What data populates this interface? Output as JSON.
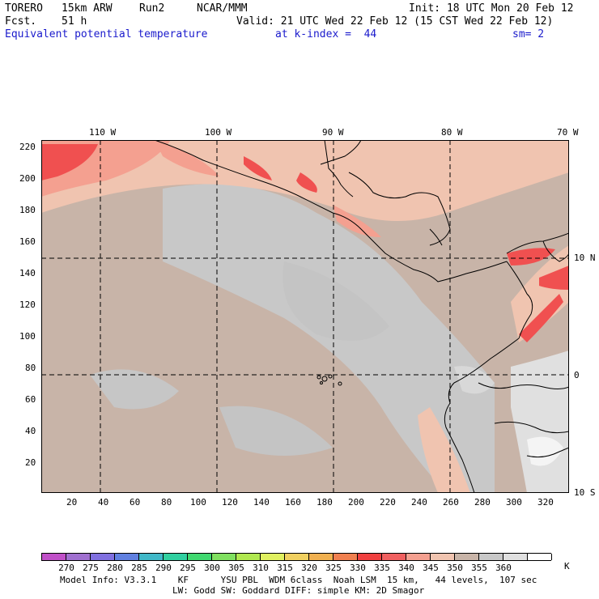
{
  "header": {
    "model": "TORERO",
    "resolution": "15km ARW",
    "run": "Run2",
    "org": "NCAR/MMM",
    "init": "Init: 18 UTC Mon 20 Feb 12",
    "fcst_label": "Fcst.",
    "fcst_value": "51 h",
    "valid": "Valid: 21 UTC Wed 22 Feb 12 (15 CST Wed 22 Feb 12)",
    "field": "Equivalent potential temperature",
    "level": "at k-index =  44",
    "smoothing": "sm= 2"
  },
  "map": {
    "top_lon_labels": [
      "110 W",
      "100 W",
      "90 W",
      "80 W",
      "70 W"
    ],
    "right_lat_labels": [
      "10 N",
      "0",
      "10 S"
    ],
    "left_y_ticks": [
      "220",
      "200",
      "180",
      "160",
      "140",
      "120",
      "100",
      "80",
      "60",
      "40",
      "20"
    ],
    "bottom_x_ticks": [
      "20",
      "40",
      "60",
      "80",
      "100",
      "120",
      "140",
      "160",
      "180",
      "200",
      "220",
      "240",
      "260",
      "280",
      "300",
      "320"
    ],
    "colors": {
      "ocean_base": "#c8b4a8",
      "cool": "#c8c8c8",
      "warm_light": "#f0c4b0",
      "warm_mid": "#f4a090",
      "warm_hot": "#f05050",
      "land_pale": "#e8e8e8"
    }
  },
  "colorbar": {
    "labels": [
      "270",
      "275",
      "280",
      "285",
      "290",
      "295",
      "300",
      "305",
      "310",
      "315",
      "320",
      "325",
      "330",
      "335",
      "340",
      "345",
      "350",
      "355",
      "360"
    ],
    "unit": "K",
    "colors": [
      "#c050c8",
      "#a070d0",
      "#8070e0",
      "#6080e0",
      "#40b8c8",
      "#30d0a0",
      "#40d870",
      "#80e060",
      "#b0e850",
      "#e0f060",
      "#f0d060",
      "#f0b050",
      "#f08050",
      "#f04040",
      "#f06060",
      "#f4a090",
      "#f0c4b0",
      "#c8b4a8",
      "#c8c8c8",
      "#e0e0e0",
      "#ffffff"
    ]
  },
  "footer": {
    "line1": "Model Info: V3.3.1    KF      YSU PBL  WDM 6class  Noah LSM  15 km,   44 levels,  107 sec",
    "line2": "LW: Godd SW: Goddard DIFF: simple KM: 2D Smagor"
  }
}
